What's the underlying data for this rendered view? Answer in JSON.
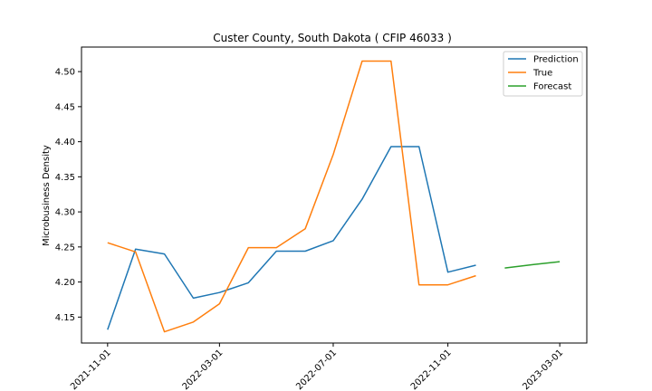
{
  "chart_data": {
    "type": "line",
    "title": "Custer County, South Dakota ( CFIP 46033 )",
    "xlabel": "",
    "ylabel": "Microbusiness Density",
    "x_ticks": [
      "2021-11-01",
      "2022-03-01",
      "2022-07-01",
      "2022-11-01",
      "2023-03-01"
    ],
    "y_ticks": [
      "4.15",
      "4.20",
      "4.25",
      "4.30",
      "4.35",
      "4.40",
      "4.45",
      "4.50"
    ],
    "ylim": [
      4.113,
      4.535
    ],
    "grid": false,
    "legend_position": "top-right",
    "series": [
      {
        "name": "Prediction",
        "color": "#1f77b4",
        "x": [
          "2021-11-01",
          "2021-12-01",
          "2022-01-01",
          "2022-02-01",
          "2022-03-01",
          "2022-04-01",
          "2022-05-01",
          "2022-06-01",
          "2022-07-01",
          "2022-08-01",
          "2022-09-01",
          "2022-10-01",
          "2022-11-01",
          "2022-12-01"
        ],
        "values": [
          4.132,
          4.247,
          4.24,
          4.177,
          4.185,
          4.199,
          4.244,
          4.244,
          4.259,
          4.318,
          4.393,
          4.393,
          4.214,
          4.224
        ]
      },
      {
        "name": "True",
        "color": "#ff7f0e",
        "x": [
          "2021-11-01",
          "2021-12-01",
          "2022-01-01",
          "2022-02-01",
          "2022-03-01",
          "2022-04-01",
          "2022-05-01",
          "2022-06-01",
          "2022-07-01",
          "2022-08-01",
          "2022-09-01",
          "2022-10-01",
          "2022-11-01",
          "2022-12-01"
        ],
        "values": [
          4.256,
          4.243,
          4.129,
          4.143,
          4.169,
          4.249,
          4.249,
          4.276,
          4.382,
          4.515,
          4.515,
          4.196,
          4.196,
          4.209
        ]
      },
      {
        "name": "Forecast",
        "color": "#2ca02c",
        "x": [
          "2023-01-01",
          "2023-02-01",
          "2023-03-01"
        ],
        "values": [
          4.22,
          4.225,
          4.229
        ]
      }
    ]
  }
}
